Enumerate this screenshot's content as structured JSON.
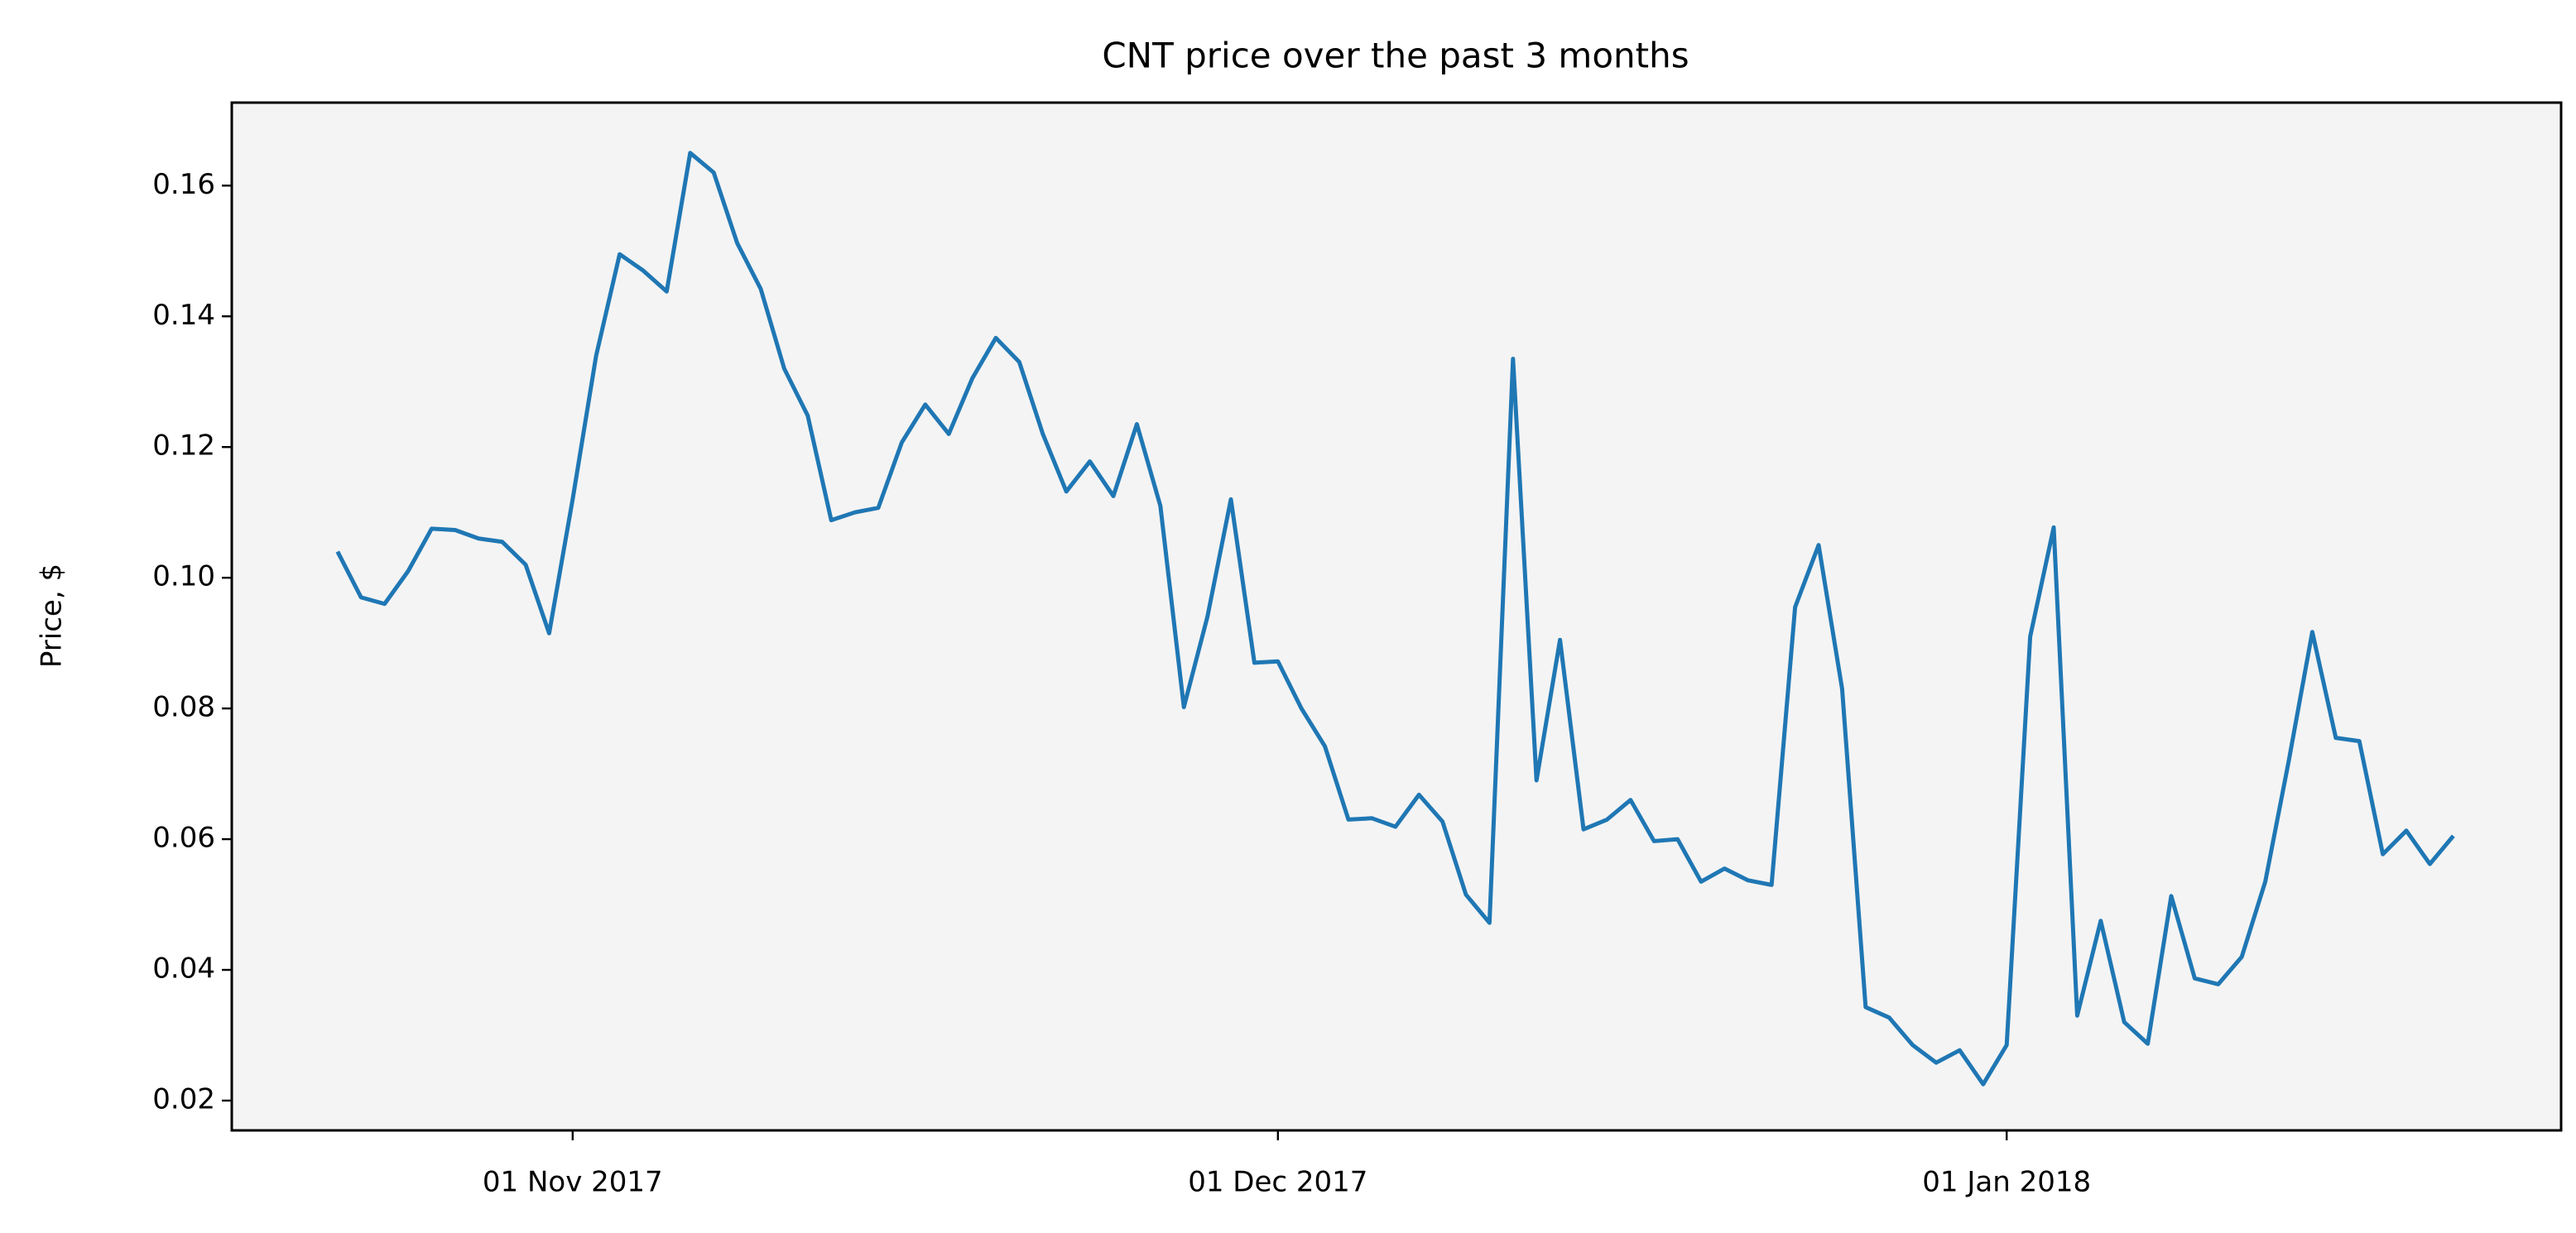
{
  "chart_data": {
    "type": "line",
    "title": "CNT price over the past 3 months",
    "y_label": "Price, $",
    "x": [
      "2017-10-22",
      "2017-10-23",
      "2017-10-24",
      "2017-10-25",
      "2017-10-26",
      "2017-10-27",
      "2017-10-28",
      "2017-10-29",
      "2017-10-30",
      "2017-10-31",
      "2017-11-01",
      "2017-11-02",
      "2017-11-03",
      "2017-11-04",
      "2017-11-05",
      "2017-11-06",
      "2017-11-07",
      "2017-11-08",
      "2017-11-09",
      "2017-11-10",
      "2017-11-11",
      "2017-11-12",
      "2017-11-13",
      "2017-11-14",
      "2017-11-15",
      "2017-11-16",
      "2017-11-17",
      "2017-11-18",
      "2017-11-19",
      "2017-11-20",
      "2017-11-21",
      "2017-11-22",
      "2017-11-23",
      "2017-11-24",
      "2017-11-25",
      "2017-11-26",
      "2017-11-27",
      "2017-11-28",
      "2017-11-29",
      "2017-11-30",
      "2017-12-01",
      "2017-12-02",
      "2017-12-03",
      "2017-12-04",
      "2017-12-05",
      "2017-12-06",
      "2017-12-07",
      "2017-12-08",
      "2017-12-09",
      "2017-12-10",
      "2017-12-11",
      "2017-12-12",
      "2017-12-13",
      "2017-12-14",
      "2017-12-15",
      "2017-12-16",
      "2017-12-17",
      "2017-12-18",
      "2017-12-19",
      "2017-12-20",
      "2017-12-21",
      "2017-12-22",
      "2017-12-23",
      "2017-12-24",
      "2017-12-25",
      "2017-12-26",
      "2017-12-27",
      "2017-12-28",
      "2017-12-29",
      "2017-12-30",
      "2017-12-31",
      "2018-01-01",
      "2018-01-02",
      "2018-01-03",
      "2018-01-04",
      "2018-01-05",
      "2018-01-06",
      "2018-01-07",
      "2018-01-08",
      "2018-01-09",
      "2018-01-10",
      "2018-01-11",
      "2018-01-12",
      "2018-01-13",
      "2018-01-14",
      "2018-01-15",
      "2018-01-16",
      "2018-01-17",
      "2018-01-18",
      "2018-01-19",
      "2018-01-20"
    ],
    "series": [
      {
        "name": "CNT",
        "color": "#1f77b4",
        "values": [
          0.104,
          0.097,
          0.096,
          0.101,
          0.1075,
          0.1073,
          0.106,
          0.1055,
          0.102,
          0.0915,
          0.112,
          0.134,
          0.1495,
          0.147,
          0.1438,
          0.165,
          0.162,
          0.1512,
          0.1442,
          0.132,
          0.1248,
          0.1088,
          0.11,
          0.1107,
          0.1207,
          0.1265,
          0.122,
          0.1305,
          0.1367,
          0.133,
          0.122,
          0.1132,
          0.1178,
          0.1125,
          0.1235,
          0.111,
          0.0802,
          0.094,
          0.112,
          0.087,
          0.0872,
          0.08,
          0.0742,
          0.063,
          0.0632,
          0.0619,
          0.0668,
          0.0627,
          0.0515,
          0.0472,
          0.1335,
          0.069,
          0.0905,
          0.0615,
          0.063,
          0.066,
          0.0597,
          0.06,
          0.0535,
          0.0555,
          0.0537,
          0.053,
          0.0955,
          0.105,
          0.083,
          0.0343,
          0.0327,
          0.0285,
          0.0258,
          0.0277,
          0.0225,
          0.0285,
          0.091,
          0.1077,
          0.033,
          0.0475,
          0.032,
          0.0287,
          0.0513,
          0.0387,
          0.0378,
          0.042,
          0.0535,
          0.072,
          0.0917,
          0.0755,
          0.075,
          0.0577,
          0.0613,
          0.0562,
          0.0605
        ]
      }
    ],
    "xlim": [
      "2017-10-17T12:00:00Z",
      "2018-01-24T14:00:00Z"
    ],
    "xticks": [
      {
        "value": "2017-11-01",
        "label": "01 Nov 2017"
      },
      {
        "value": "2017-12-01",
        "label": "01 Dec 2017"
      },
      {
        "value": "2018-01-01",
        "label": "01 Jan 2018"
      }
    ],
    "ylim": [
      0.01544,
      0.1727
    ],
    "yticks": [
      {
        "value": 0.02,
        "label": "0.02"
      },
      {
        "value": 0.04,
        "label": "0.04"
      },
      {
        "value": 0.06,
        "label": "0.06"
      },
      {
        "value": 0.08,
        "label": "0.08"
      },
      {
        "value": 0.1,
        "label": "0.10"
      },
      {
        "value": 0.12,
        "label": "0.12"
      },
      {
        "value": 0.14,
        "label": "0.14"
      },
      {
        "value": 0.16,
        "label": "0.16"
      }
    ],
    "grid": false
  }
}
